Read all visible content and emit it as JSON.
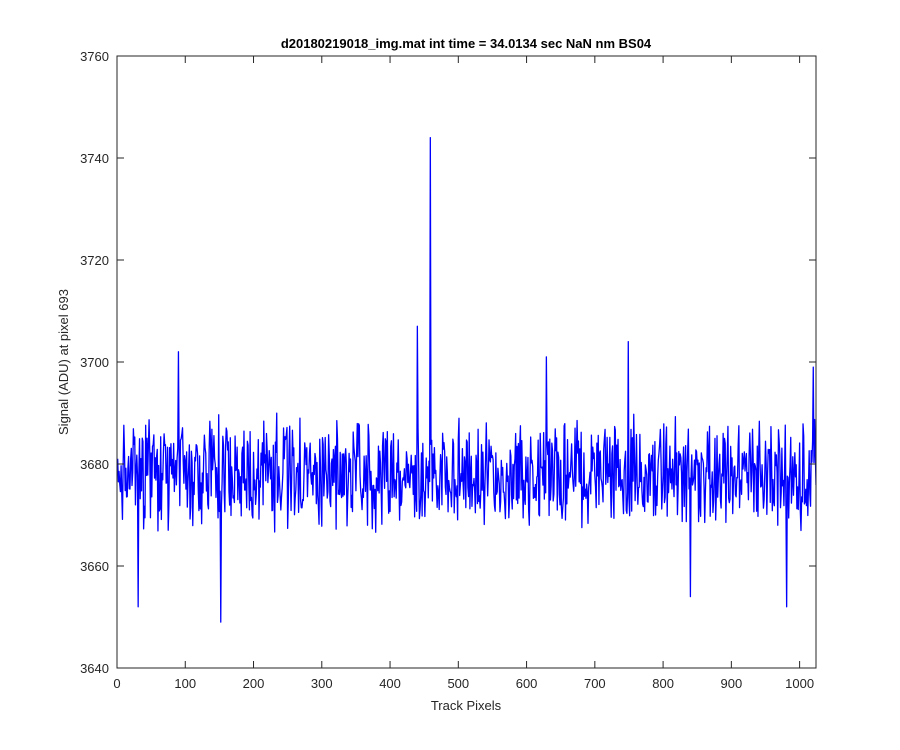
{
  "chart_data": {
    "type": "line",
    "title": "d20180219018_img.mat int time = 34.0134 sec  NaN nm BS04",
    "xlabel": "Track Pixels",
    "ylabel": "Signal (ADU) at pixel 693",
    "xlim": [
      0,
      1024
    ],
    "ylim": [
      3640,
      3760
    ],
    "xticks": [
      0,
      100,
      200,
      300,
      400,
      500,
      600,
      700,
      800,
      900,
      1000
    ],
    "yticks": [
      3640,
      3660,
      3680,
      3700,
      3720,
      3740,
      3760
    ],
    "xtick_labels": [
      "0",
      "100",
      "200",
      "300",
      "400",
      "500",
      "600",
      "700",
      "800",
      "900",
      "1000"
    ],
    "ytick_labels": [
      "3640",
      "3660",
      "3680",
      "3700",
      "3720",
      "3740",
      "3760"
    ],
    "grid": false,
    "legend": "none",
    "series": [
      {
        "color": "#0000ff",
        "x_start": 1,
        "x_step": 1,
        "baseline": 3678,
        "noise_amplitude": 8,
        "values_key_points": [
          {
            "x": 31,
            "y": 3652
          },
          {
            "x": 90,
            "y": 3702
          },
          {
            "x": 152,
            "y": 3649
          },
          {
            "x": 440,
            "y": 3707
          },
          {
            "x": 459,
            "y": 3754
          },
          {
            "x": 459,
            "y": 3744
          },
          {
            "x": 629,
            "y": 3701
          },
          {
            "x": 749,
            "y": 3704
          },
          {
            "x": 840,
            "y": 3654
          },
          {
            "x": 981,
            "y": 3652
          },
          {
            "x": 1020,
            "y": 3699
          }
        ]
      }
    ]
  }
}
